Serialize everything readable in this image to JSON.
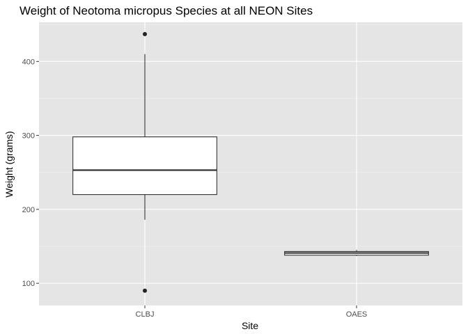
{
  "chart_data": {
    "type": "boxplot",
    "title": "Weight of Neotoma micropus Species at all NEON Sites",
    "xlabel": "Site",
    "ylabel": "Weight (grams)",
    "categories": [
      "CLBJ",
      "OAES"
    ],
    "ylim": [
      70,
      453
    ],
    "yticks": [
      100,
      200,
      300,
      400
    ],
    "grid": true,
    "boxes": [
      {
        "category": "CLBJ",
        "whisker_low": 186,
        "q1": 220,
        "median": 253,
        "q3": 298,
        "whisker_high": 410,
        "outliers": [
          437,
          90
        ]
      },
      {
        "category": "OAES",
        "whisker_low": 137,
        "q1": 138,
        "median": 141,
        "q3": 143,
        "whisker_high": 145,
        "outliers": []
      }
    ]
  },
  "colors": {
    "panel_background": "#e5e5e5",
    "grid_major": "#ffffff",
    "grid_minor": "#f2f2f2",
    "box_fill": "#ffffff",
    "box_stroke": "#333333",
    "outlier": "#222222",
    "tick_label": "#4d4d4d"
  }
}
